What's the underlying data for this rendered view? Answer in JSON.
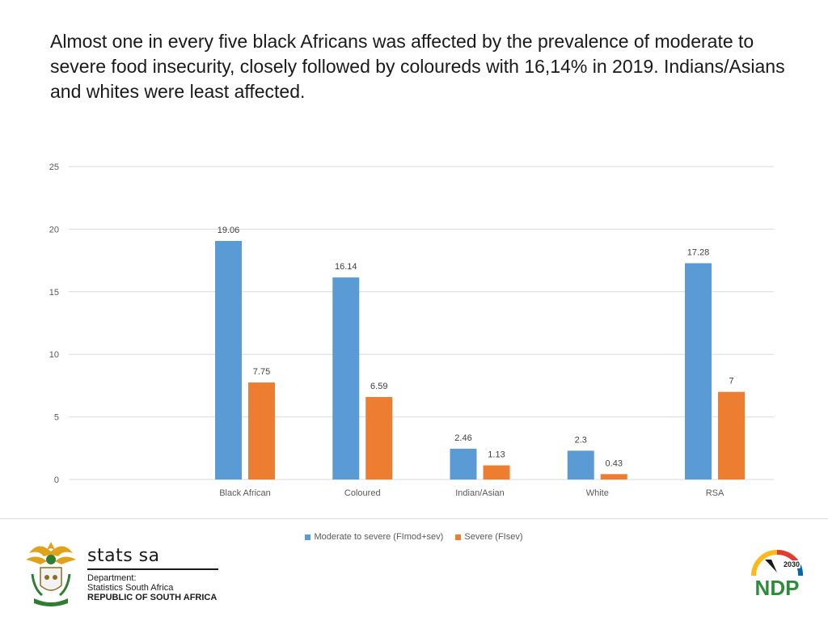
{
  "headline": "Almost one in every five black Africans was affected by the prevalence of moderate to severe food insecurity, closely followed by coloureds with 16,14% in 2019. Indians/Asians and whites were least affected.",
  "chart_data": {
    "type": "bar",
    "title": "",
    "xlabel": "",
    "ylabel": "",
    "categories": [
      "Black African",
      "Coloured",
      "Indian/Asian",
      "White",
      "RSA"
    ],
    "series": [
      {
        "name": "Moderate to severe (FImod+sev)",
        "color": "#5B9BD5",
        "values": [
          19.06,
          16.14,
          2.46,
          2.3,
          17.28
        ]
      },
      {
        "name": "Severe (FIsev)",
        "color": "#ED7D31",
        "values": [
          7.75,
          6.59,
          1.13,
          0.43,
          7
        ]
      }
    ],
    "ylim": [
      0,
      25
    ],
    "yticks": [
      0,
      5,
      10,
      15,
      20,
      25
    ],
    "grid": true,
    "legend": "bottom"
  },
  "footer": {
    "org_name": "stats sa",
    "org_line1": "Department:",
    "org_line2": "Statistics South Africa",
    "org_line3": "REPUBLIC OF SOUTH AFRICA",
    "ndp_text": "NDP",
    "ndp_year": "2030"
  }
}
